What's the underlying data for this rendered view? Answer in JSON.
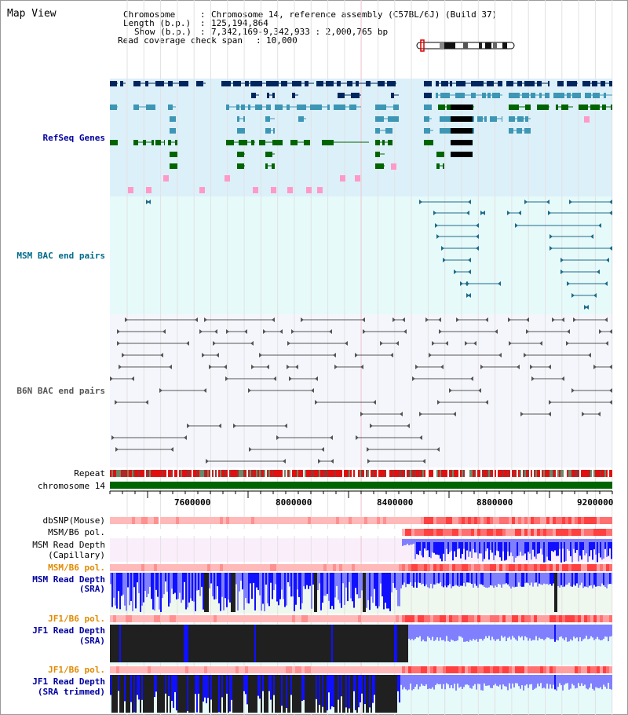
{
  "title": "Map View",
  "header": {
    "chromosome_key": "Chromosome",
    "chromosome_value": "Chromosome 14, reference assembly (C57BL/6J) (Build 37)",
    "length_key": "Length (b.p.)",
    "length_value": "125,194,864",
    "show_key": "Show (b.p.)",
    "show_value": "7,342,169-9,342,933 : 2,000,765 bp",
    "span_key": "Read coverage check span",
    "span_value": "10,000"
  },
  "tracks": {
    "refseq": "RefSeq Genes",
    "msm_bac": "MSM BAC end pairs",
    "b6n_bac": "B6N BAC end pairs",
    "repeat": "Repeat",
    "chromosome": "chromosome 14",
    "dbsnp": "dbSNP(Mouse)",
    "msm_b6_pol_1": "MSM/B6 pol.",
    "msm_read_depth_cap_1": "MSM Read Depth",
    "msm_read_depth_cap_2": "(Capillary)",
    "msm_b6_pol_2": "MSM/B6 pol.",
    "msm_read_depth_sra_1": "MSM Read Depth",
    "msm_read_depth_sra_2": "(SRA)",
    "jf1_b6_pol_1": "JF1/B6 pol.",
    "jf1_read_depth_sra_1": "JF1 Read Depth",
    "jf1_read_depth_sra_2": "(SRA)",
    "jf1_b6_pol_2": "JF1/B6 pol.",
    "jf1_read_depth_trim_1": "JF1 Read Depth",
    "jf1_read_depth_trim_2": "(SRA trimmed)"
  },
  "axis": {
    "ticks": [
      "7600000",
      "8000000",
      "8400000",
      "8800000",
      "9200000"
    ]
  },
  "colors": {
    "refseq_bg": "#dcf0fa",
    "msm_bac_bg": "#e6fafa",
    "b6n_bac_bg": "#f5f6fc",
    "gene_dark": "#00265e",
    "gene_mid": "#3c96b4",
    "gene_green": "#006400",
    "gene_black": "#000000",
    "gene_pink": "#ff9ac8",
    "msm_bac": "#1e6a8a",
    "b6n_bac": "#555555",
    "chromosome": "#006400",
    "snp_pink": "#ffb9b9",
    "snp_red": "#ff4040",
    "depth_blue": "#1010ff",
    "depth_light": "#8080ff",
    "depth_black": "#202020",
    "orange_label": "#e08a00",
    "navy_label": "#0000a0",
    "teal_label": "#006a8a"
  }
}
